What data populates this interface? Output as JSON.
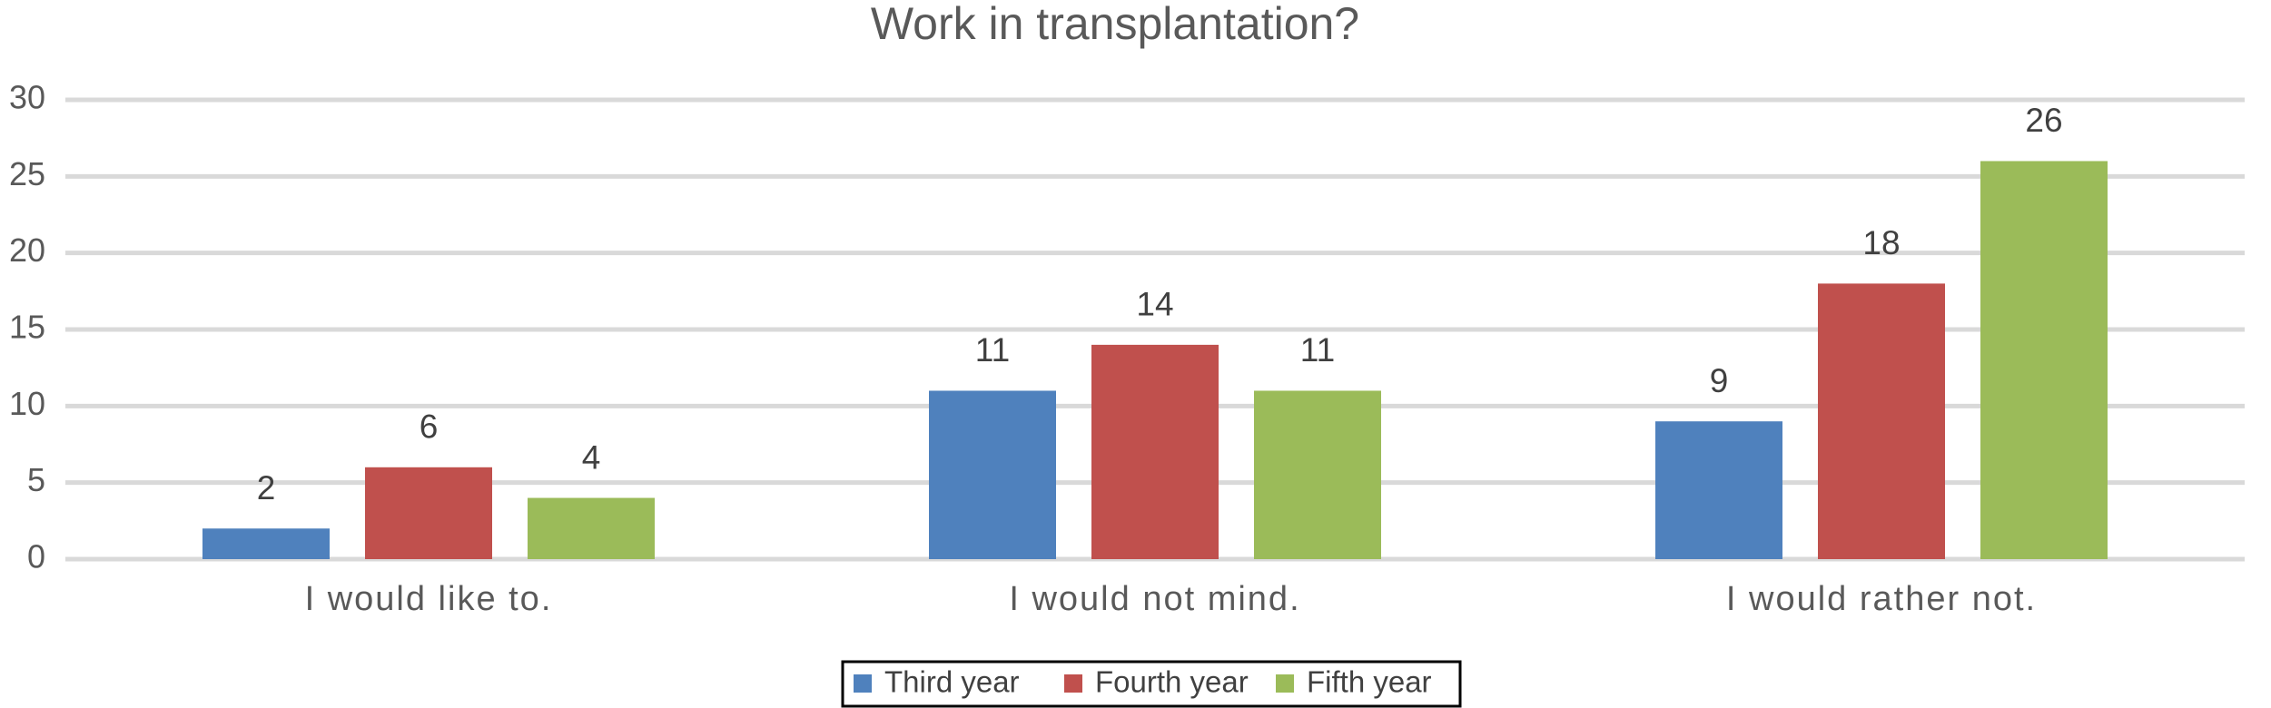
{
  "chart_data": {
    "type": "bar",
    "title": "Work in transplantation?",
    "categories": [
      "I would like to.",
      "I would not mind.",
      "I would rather not."
    ],
    "series": [
      {
        "name": "Third year",
        "color": "#4f81bd",
        "values": [
          2,
          11,
          9
        ]
      },
      {
        "name": "Fourth year",
        "color": "#c0504d",
        "values": [
          6,
          14,
          18
        ]
      },
      {
        "name": "Fifth year",
        "color": "#9bbb59",
        "values": [
          4,
          11,
          26
        ]
      }
    ],
    "ylim": [
      0,
      30
    ],
    "yticks": [
      0,
      5,
      10,
      15,
      20,
      25,
      30
    ],
    "grid": true,
    "legend": "bottom"
  }
}
